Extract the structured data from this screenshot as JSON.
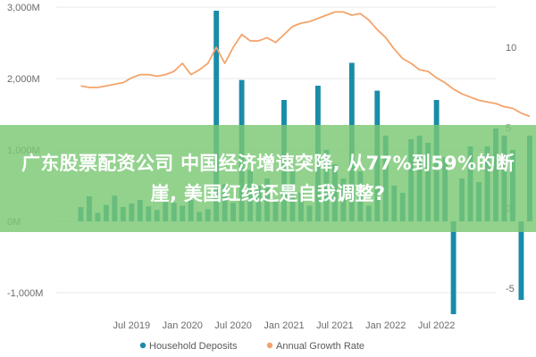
{
  "banner": {
    "text": "广东股票配资公司 中国经济增速突降, 从77%到59%的断崖, 美国红线还是自我调整?"
  },
  "chart_data": {
    "type": "bar+line",
    "colors": {
      "bars": "#1a8ca8",
      "line": "#f3a46b",
      "grid": "#e8e8e8",
      "axis_text": "#6b6b6b"
    },
    "left_axis": {
      "ylim": [
        -1500,
        3000
      ],
      "ticks": [
        3000,
        2000,
        1000,
        0,
        -1000
      ],
      "tick_labels": [
        "3,000M",
        "2,000M",
        "1,000M",
        "0M",
        "-1,000M"
      ]
    },
    "right_axis": {
      "ylim": [
        -7.5,
        12.5
      ],
      "ticks": [
        10,
        5,
        0,
        -5
      ],
      "tick_labels": [
        "10",
        "5",
        "0",
        "-5"
      ]
    },
    "x_tick_labels": [
      "Jul 2019",
      "Jan 2020",
      "Jul 2020",
      "Jan 2021",
      "Jul 2021",
      "Jan 2022",
      "Jul 2022"
    ],
    "x_tick_months": [
      6,
      12,
      18,
      24,
      30,
      36,
      42
    ],
    "months_range": [
      -3,
      49
    ],
    "grid": true,
    "legend_position": "bottom",
    "series": [
      {
        "name": "Household Deposits",
        "kind": "bar",
        "axis": "left",
        "values": [
          200,
          350,
          120,
          230,
          360,
          200,
          250,
          300,
          210,
          160,
          270,
          260,
          220,
          300,
          130,
          170,
          2950,
          520,
          260,
          1980,
          720,
          500,
          600,
          300,
          1700,
          700,
          400,
          220,
          1900,
          1000,
          800,
          600,
          2220,
          700,
          220,
          1830,
          1200,
          500,
          400,
          1150,
          1200,
          1100,
          1700,
          900,
          -1300,
          600,
          1050,
          550,
          1050,
          1300,
          1200,
          1000,
          -1100,
          1200
        ]
      },
      {
        "name": "Annual Growth Rate",
        "kind": "line",
        "axis": "right",
        "values": [
          7.6,
          7.5,
          7.5,
          7.6,
          7.7,
          7.8,
          8.1,
          8.3,
          8.3,
          8.2,
          8.3,
          8.5,
          9.0,
          8.3,
          8.6,
          9.0,
          10.0,
          9.0,
          10.0,
          10.8,
          10.4,
          10.4,
          10.6,
          10.3,
          10.8,
          11.3,
          11.5,
          11.6,
          11.8,
          12.0,
          12.2,
          12.2,
          12.0,
          12.1,
          11.7,
          11.1,
          10.6,
          9.9,
          9.3,
          9.0,
          8.6,
          8.5,
          8.1,
          7.8,
          7.4,
          7.1,
          6.9,
          6.7,
          6.6,
          6.5,
          6.3,
          6.2,
          5.9,
          5.7
        ]
      }
    ]
  },
  "legend": [
    {
      "label": "Household Deposits",
      "color": "#1a8ca8"
    },
    {
      "label": "Annual Growth Rate",
      "color": "#f3a46b"
    }
  ]
}
